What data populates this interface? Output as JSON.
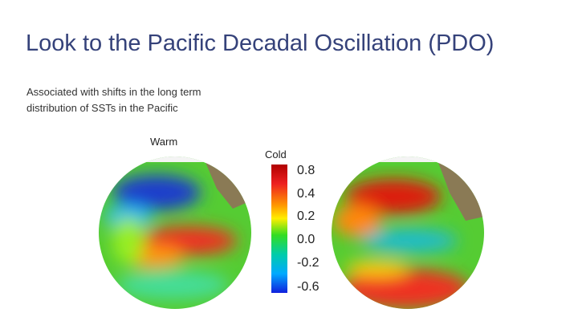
{
  "title": "Look to the Pacific Decadal Oscillation (PDO)",
  "body": "Associated with shifts in the long term distribution of SSTs in the Pacific",
  "labels": {
    "warm": "Warm",
    "cold": "Cold"
  },
  "colorbar": {
    "labels": [
      "0.8",
      "0.4",
      "0.2",
      "0.0",
      "-0.2",
      "-0.6"
    ]
  }
}
